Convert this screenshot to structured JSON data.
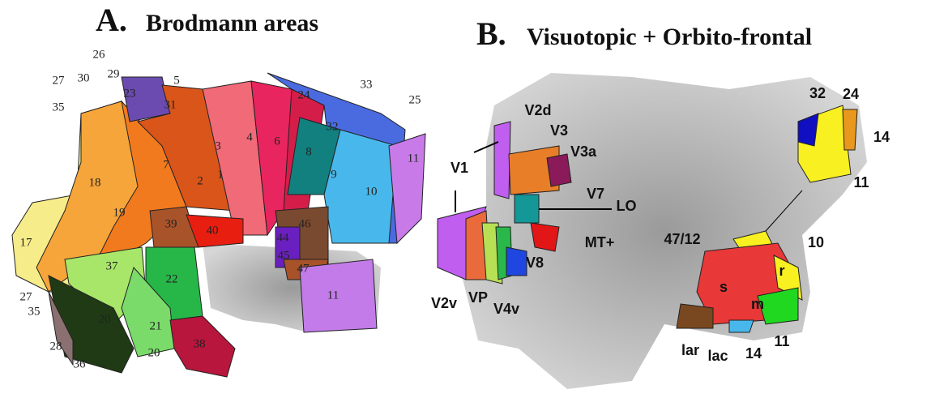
{
  "panels": [
    {
      "title_letter": "A.",
      "title": "Brodmann areas",
      "labels": [
        "26",
        "27",
        "30",
        "29",
        "35",
        "23",
        "31",
        "5",
        "3",
        "1",
        "2",
        "4",
        "6",
        "24",
        "33",
        "25",
        "32",
        "8",
        "9",
        "10",
        "11",
        "7",
        "18",
        "19",
        "17",
        "39",
        "40",
        "46",
        "44",
        "45",
        "47",
        "37",
        "22",
        "11",
        "27",
        "35",
        "20",
        "21",
        "20",
        "38",
        "28",
        "36"
      ]
    },
    {
      "title_letter": "B.",
      "title": "Visuotopic + Orbito-frontal",
      "labels": [
        "V2d",
        "V3",
        "V3a",
        "V1",
        "V7",
        "LO",
        "MT+",
        "V8",
        "V2v",
        "VP",
        "V4v",
        "47/12",
        "32",
        "24",
        "14",
        "11",
        "10",
        "r",
        "s",
        "m",
        "11",
        "lar",
        "lac",
        "14"
      ]
    }
  ]
}
